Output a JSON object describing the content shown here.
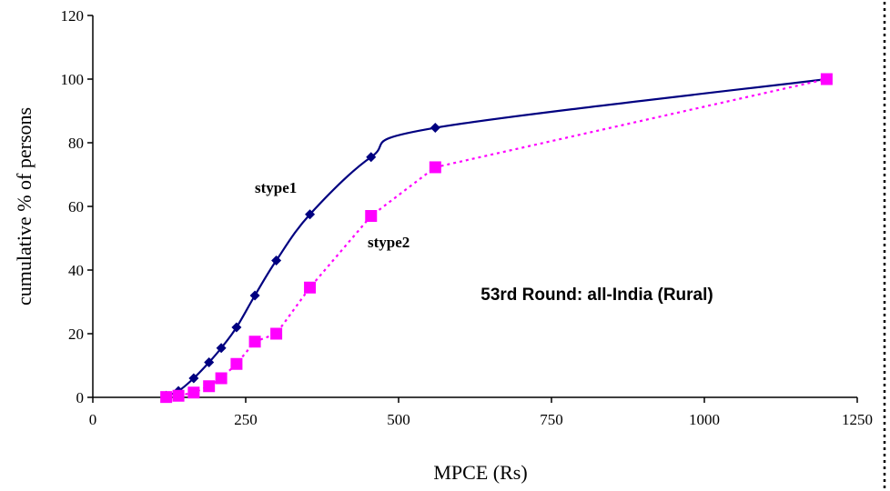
{
  "chart_data": {
    "type": "line",
    "xlabel": "MPCE (Rs)",
    "ylabel": "cumulative % of persons",
    "xlim": [
      0,
      1250
    ],
    "ylim": [
      0,
      120
    ],
    "xticks": [
      "0",
      "250",
      "500",
      "750",
      "1000",
      "1250"
    ],
    "yticks": [
      "0",
      "20",
      "40",
      "60",
      "80",
      "100",
      "120"
    ],
    "annotation": "53rd Round: all-India (Rural)",
    "grid": false,
    "series": [
      {
        "name": "stype1",
        "color": "#000080",
        "marker": "diamond",
        "line": "solid",
        "x": [
          120,
          140,
          165,
          190,
          210,
          235,
          265,
          300,
          355,
          455,
          560,
          1200
        ],
        "y": [
          0.5,
          2,
          6,
          11,
          15.5,
          22,
          32,
          43,
          57.5,
          75.5,
          84.7,
          100
        ]
      },
      {
        "name": "stype2",
        "color": "#ff00ff",
        "marker": "square",
        "line": "dotted",
        "x": [
          120,
          140,
          165,
          190,
          210,
          235,
          265,
          300,
          355,
          455,
          560,
          1200
        ],
        "y": [
          0.1,
          0.5,
          1.5,
          3.5,
          6,
          10.5,
          17.5,
          20,
          34.5,
          57,
          72.3,
          100
        ]
      }
    ]
  }
}
